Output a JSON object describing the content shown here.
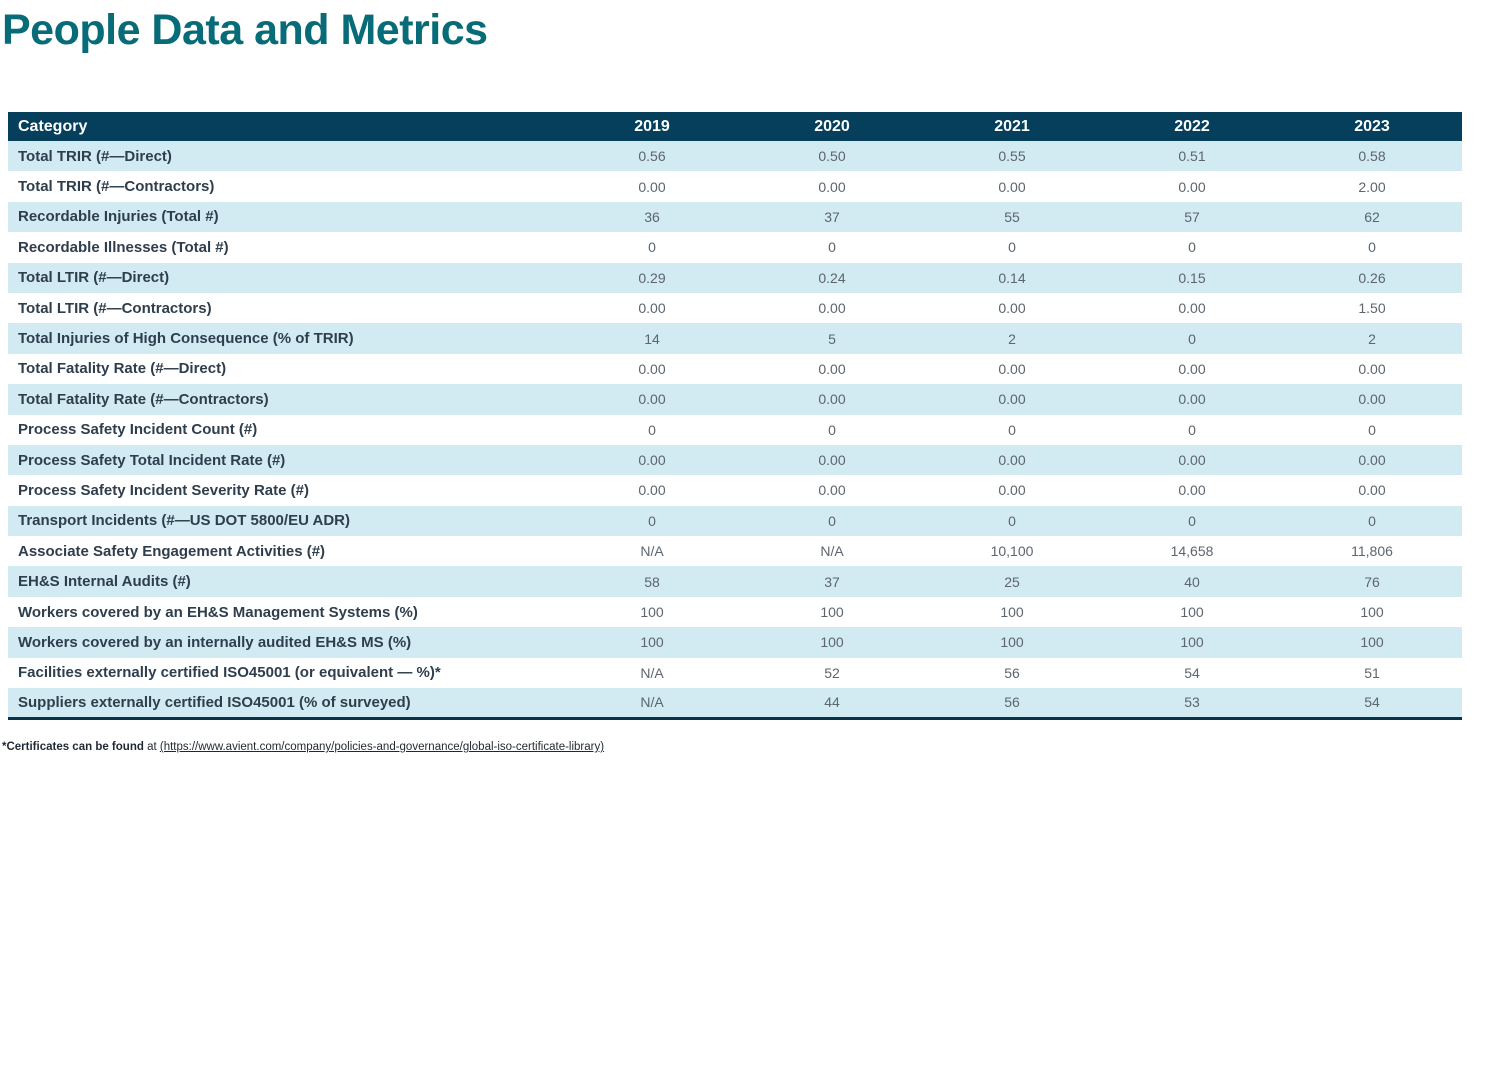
{
  "page": {
    "title": "People Data and Metrics"
  },
  "colors": {
    "title_teal": "#086c78",
    "header_bg": "#053f5c",
    "header_text": "#ffffff",
    "row_alt_bg": "#d2eaf2",
    "row_bg": "#ffffff",
    "label_text": "#2f3e4d",
    "value_text": "#5d656d",
    "table_bottom_border": "#083349"
  },
  "table": {
    "columns": [
      "Category",
      "2019",
      "2020",
      "2021",
      "2022",
      "2023"
    ],
    "rows": [
      {
        "label": "Total TRIR (#—Direct)",
        "values": [
          "0.56",
          "0.50",
          "0.55",
          "0.51",
          "0.58"
        ]
      },
      {
        "label": "Total TRIR (#—Contractors)",
        "values": [
          "0.00",
          "0.00",
          "0.00",
          "0.00",
          "2.00"
        ]
      },
      {
        "label": "Recordable Injuries (Total #)",
        "values": [
          "36",
          "37",
          "55",
          "57",
          "62"
        ]
      },
      {
        "label": "Recordable Illnesses (Total #)",
        "values": [
          "0",
          "0",
          "0",
          "0",
          "0"
        ]
      },
      {
        "label": "Total LTIR (#—Direct)",
        "values": [
          "0.29",
          "0.24",
          "0.14",
          "0.15",
          "0.26"
        ]
      },
      {
        "label": "Total LTIR (#—Contractors)",
        "values": [
          "0.00",
          "0.00",
          "0.00",
          "0.00",
          "1.50"
        ]
      },
      {
        "label": "Total Injuries of High Consequence (% of TRIR)",
        "values": [
          "14",
          "5",
          "2",
          "0",
          "2"
        ]
      },
      {
        "label": "Total Fatality Rate (#—Direct)",
        "values": [
          "0.00",
          "0.00",
          "0.00",
          "0.00",
          "0.00"
        ]
      },
      {
        "label": "Total Fatality Rate (#—Contractors)",
        "values": [
          "0.00",
          "0.00",
          "0.00",
          "0.00",
          "0.00"
        ]
      },
      {
        "label": "Process Safety Incident Count (#)",
        "values": [
          "0",
          "0",
          "0",
          "0",
          "0"
        ]
      },
      {
        "label": "Process Safety Total Incident Rate (#)",
        "values": [
          "0.00",
          "0.00",
          "0.00",
          "0.00",
          "0.00"
        ]
      },
      {
        "label": "Process Safety Incident Severity Rate (#)",
        "values": [
          "0.00",
          "0.00",
          "0.00",
          "0.00",
          "0.00"
        ]
      },
      {
        "label": "Transport Incidents (#—US DOT 5800/EU ADR)",
        "values": [
          "0",
          "0",
          "0",
          "0",
          "0"
        ]
      },
      {
        "label": "Associate Safety Engagement Activities (#)",
        "values": [
          "N/A",
          "N/A",
          "10,100",
          "14,658",
          "11,806"
        ]
      },
      {
        "label": "EH&S Internal Audits (#)",
        "values": [
          "58",
          "37",
          "25",
          "40",
          "76"
        ]
      },
      {
        "label": "Workers covered by an EH&S Management Systems (%)",
        "values": [
          "100",
          "100",
          "100",
          "100",
          "100"
        ]
      },
      {
        "label": "Workers covered by an internally audited EH&S MS (%)",
        "values": [
          "100",
          "100",
          "100",
          "100",
          "100"
        ]
      },
      {
        "label": "Facilities externally certified ISO45001 (or equivalent — %)*",
        "values": [
          "N/A",
          "52",
          "56",
          "54",
          "51"
        ]
      },
      {
        "label": "Suppliers externally certified ISO45001 (% of surveyed)",
        "values": [
          "N/A",
          "44",
          "56",
          "53",
          "54"
        ]
      }
    ]
  },
  "footnote": {
    "prefix": "*Certificates can be found",
    "middle": " at ",
    "link": "(https://www.avient.com/company/policies-and-governance/global-iso-certificate-library)"
  }
}
